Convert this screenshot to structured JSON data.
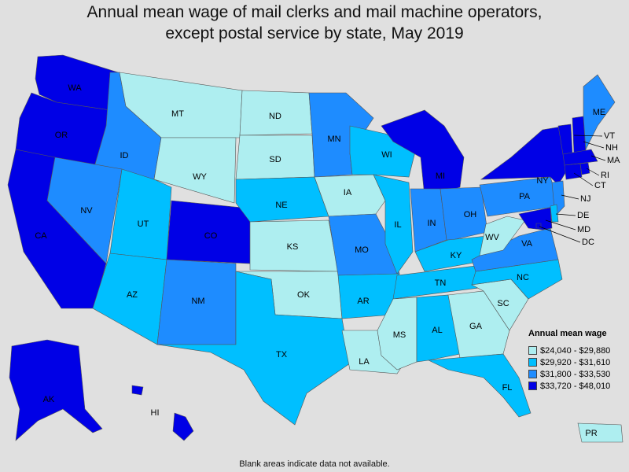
{
  "title": {
    "line1": "Annual mean wage of mail clerks and mail machine operators,",
    "line2": "except postal service by state, May 2019"
  },
  "legend": {
    "title": "Annual mean wage",
    "bins": [
      {
        "label": "$24,040 - $29,880",
        "color": "#aeeef0"
      },
      {
        "label": "$29,920 - $31,610",
        "color": "#00bfff"
      },
      {
        "label": "$31,800 - $33,530",
        "color": "#1e8cff"
      },
      {
        "label": "$33,720 - $48,010",
        "color": "#0000e6"
      }
    ]
  },
  "footnote": "Blank areas indicate data not available.",
  "states": {
    "WA": {
      "bin": 3
    },
    "OR": {
      "bin": 3
    },
    "CA": {
      "bin": 3
    },
    "ID": {
      "bin": 2
    },
    "NV": {
      "bin": 2
    },
    "MT": {
      "bin": 0
    },
    "WY": {
      "bin": 0
    },
    "UT": {
      "bin": 1
    },
    "AZ": {
      "bin": 1
    },
    "CO": {
      "bin": 3
    },
    "NM": {
      "bin": 2
    },
    "ND": {
      "bin": 0
    },
    "SD": {
      "bin": 0
    },
    "NE": {
      "bin": 1
    },
    "KS": {
      "bin": 0
    },
    "OK": {
      "bin": 0
    },
    "TX": {
      "bin": 1
    },
    "MN": {
      "bin": 2
    },
    "IA": {
      "bin": 0
    },
    "MO": {
      "bin": 2
    },
    "AR": {
      "bin": 1
    },
    "LA": {
      "bin": 0
    },
    "WI": {
      "bin": 1
    },
    "IL": {
      "bin": 1
    },
    "MI": {
      "bin": 3
    },
    "IN": {
      "bin": 2
    },
    "OH": {
      "bin": 2
    },
    "KY": {
      "bin": 1
    },
    "TN": {
      "bin": 1
    },
    "MS": {
      "bin": 0
    },
    "AL": {
      "bin": 1
    },
    "GA": {
      "bin": 0
    },
    "FL": {
      "bin": 1
    },
    "SC": {
      "bin": 0
    },
    "NC": {
      "bin": 1
    },
    "VA": {
      "bin": 2
    },
    "WV": {
      "bin": 0
    },
    "PA": {
      "bin": 2
    },
    "NY": {
      "bin": 3
    },
    "VT": {
      "bin": 3
    },
    "NH": {
      "bin": 3
    },
    "ME": {
      "bin": 2
    },
    "MA": {
      "bin": 3
    },
    "RI": {
      "bin": 3
    },
    "CT": {
      "bin": 3
    },
    "NJ": {
      "bin": 2
    },
    "DE": {
      "bin": 1
    },
    "MD": {
      "bin": 3
    },
    "DC": {
      "bin": 3
    },
    "AK": {
      "bin": 3
    },
    "HI": {
      "bin": 3
    },
    "PR": {
      "bin": 0
    }
  }
}
